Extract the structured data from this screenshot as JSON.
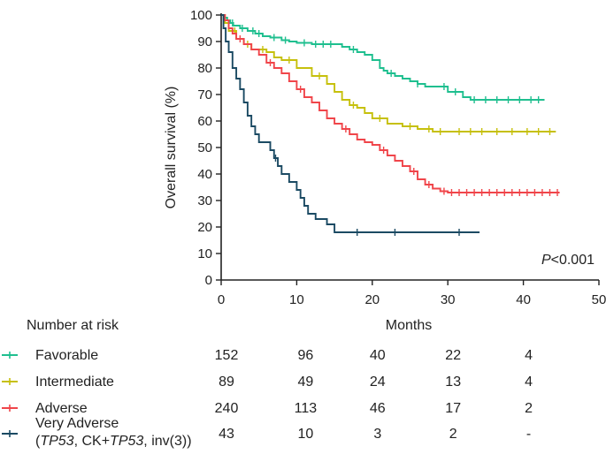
{
  "chart_data": {
    "type": "line",
    "subtype": "kaplan-meier",
    "xlabel": "Months",
    "ylabel": "Overall survival (%)",
    "xlim": [
      0,
      50
    ],
    "ylim": [
      0,
      100
    ],
    "xticks": [
      0,
      10,
      20,
      30,
      40,
      50
    ],
    "yticks": [
      0,
      10,
      20,
      30,
      40,
      50,
      60,
      70,
      80,
      90,
      100
    ],
    "annotation": {
      "prefix": "P",
      "value": "<0.001"
    },
    "series": [
      {
        "name": "Favorable",
        "color": "#1fbf8f",
        "points": [
          [
            0,
            100
          ],
          [
            0.4,
            99
          ],
          [
            0.8,
            98
          ],
          [
            1.2,
            97
          ],
          [
            1.6,
            96
          ],
          [
            2.5,
            95
          ],
          [
            3.5,
            94
          ],
          [
            4.5,
            93
          ],
          [
            5.5,
            92
          ],
          [
            6.5,
            91.5
          ],
          [
            8,
            90.5
          ],
          [
            9,
            90
          ],
          [
            10,
            89.5
          ],
          [
            12,
            89
          ],
          [
            15,
            89
          ],
          [
            16,
            88
          ],
          [
            17,
            87
          ],
          [
            18,
            86
          ],
          [
            19,
            85
          ],
          [
            20,
            83
          ],
          [
            21,
            80
          ],
          [
            21.5,
            79
          ],
          [
            22,
            78
          ],
          [
            23,
            77
          ],
          [
            24,
            76
          ],
          [
            25,
            75
          ],
          [
            26,
            74
          ],
          [
            27,
            73
          ],
          [
            30,
            71
          ],
          [
            32,
            69
          ],
          [
            33,
            68
          ],
          [
            35,
            68
          ],
          [
            42.8,
            68
          ]
        ],
        "censor_x": [
          1.5,
          2.8,
          4.2,
          5,
          7,
          8.5,
          11,
          12.5,
          13.5,
          14.5,
          17.5,
          22.5,
          26,
          29.5,
          31,
          33.5,
          35,
          36.5,
          38,
          39.5,
          41,
          42
        ]
      },
      {
        "name": "Intermediate",
        "color": "#c6c00c",
        "points": [
          [
            0,
            100
          ],
          [
            0.5,
            97
          ],
          [
            1,
            94
          ],
          [
            2,
            91
          ],
          [
            3,
            89
          ],
          [
            4,
            87
          ],
          [
            6,
            86
          ],
          [
            7,
            84
          ],
          [
            8,
            83
          ],
          [
            10,
            80
          ],
          [
            12,
            77
          ],
          [
            14,
            74
          ],
          [
            15,
            71
          ],
          [
            16,
            68
          ],
          [
            17,
            66
          ],
          [
            18,
            65
          ],
          [
            19,
            63
          ],
          [
            20,
            61
          ],
          [
            22,
            59
          ],
          [
            24,
            58
          ],
          [
            26,
            57
          ],
          [
            28,
            56
          ],
          [
            30,
            56
          ],
          [
            44.3,
            56
          ]
        ],
        "censor_x": [
          1.8,
          3.5,
          5.5,
          9,
          13,
          17.5,
          21,
          25,
          27.5,
          29,
          31.5,
          33,
          34.5,
          36.5,
          38.5,
          40.5,
          42,
          43.5
        ]
      },
      {
        "name": "Adverse",
        "color": "#f0454a",
        "points": [
          [
            0,
            100
          ],
          [
            0.5,
            98
          ],
          [
            1,
            95
          ],
          [
            1.5,
            93
          ],
          [
            2,
            91
          ],
          [
            3,
            89
          ],
          [
            4,
            87
          ],
          [
            5,
            85
          ],
          [
            6,
            82
          ],
          [
            7,
            80
          ],
          [
            8,
            78
          ],
          [
            9,
            75
          ],
          [
            10,
            72
          ],
          [
            11,
            69
          ],
          [
            12,
            67
          ],
          [
            13,
            64
          ],
          [
            14,
            61
          ],
          [
            15,
            59
          ],
          [
            16,
            57
          ],
          [
            17,
            55
          ],
          [
            18,
            53
          ],
          [
            19,
            52
          ],
          [
            20,
            51
          ],
          [
            21,
            49
          ],
          [
            22,
            47
          ],
          [
            23,
            45
          ],
          [
            24,
            43
          ],
          [
            25,
            41
          ],
          [
            26,
            38
          ],
          [
            27,
            36
          ],
          [
            28,
            34.5
          ],
          [
            29,
            33.5
          ],
          [
            30,
            33
          ],
          [
            44.8,
            33
          ]
        ],
        "censor_x": [
          2.5,
          6.5,
          10.5,
          16.5,
          21.5,
          25.5,
          27.5,
          29.5,
          30.5,
          31.5,
          32.5,
          33.5,
          34.5,
          35.5,
          36.5,
          37.5,
          38.5,
          39.5,
          40.5,
          41.5,
          42.5,
          43.5,
          44.5
        ]
      },
      {
        "name": "Very Adverse (TP53, CK+TP53, inv(3))",
        "color": "#1b4a63",
        "points": [
          [
            0,
            100
          ],
          [
            0.3,
            95
          ],
          [
            0.6,
            90
          ],
          [
            1,
            86
          ],
          [
            1.5,
            80
          ],
          [
            2,
            76
          ],
          [
            2.5,
            72
          ],
          [
            3,
            67
          ],
          [
            3.5,
            62
          ],
          [
            4,
            58
          ],
          [
            4.5,
            55
          ],
          [
            5,
            52
          ],
          [
            6.5,
            49
          ],
          [
            7,
            46
          ],
          [
            7.5,
            43
          ],
          [
            8,
            40
          ],
          [
            9,
            37
          ],
          [
            10,
            34
          ],
          [
            10.5,
            31
          ],
          [
            11,
            28
          ],
          [
            11.5,
            25
          ],
          [
            12.5,
            23
          ],
          [
            14,
            21
          ],
          [
            15,
            18
          ],
          [
            34.2,
            18
          ]
        ],
        "censor_x": [
          7.2,
          18,
          23,
          31.5
        ]
      }
    ],
    "risk_table": {
      "title": "Number at risk",
      "timepoints": [
        0,
        10,
        20,
        30,
        40
      ],
      "rows": [
        {
          "label": "Favorable",
          "label_line2": "",
          "color": "#1fbf8f",
          "values": [
            "152",
            "96",
            "40",
            "22",
            "4"
          ]
        },
        {
          "label": "Intermediate",
          "label_line2": "",
          "color": "#c6c00c",
          "values": [
            "89",
            "49",
            "24",
            "13",
            "4"
          ]
        },
        {
          "label": "Adverse",
          "label_line2": "",
          "color": "#f0454a",
          "values": [
            "240",
            "113",
            "46",
            "17",
            "2"
          ]
        },
        {
          "label": "Very Adverse",
          "label_line2_parts": [
            "(",
            "TP53",
            ", CK+",
            "TP53",
            ", inv(3))"
          ],
          "color": "#1b4a63",
          "values": [
            "43",
            "10",
            "3",
            "2",
            "-"
          ]
        }
      ]
    }
  }
}
